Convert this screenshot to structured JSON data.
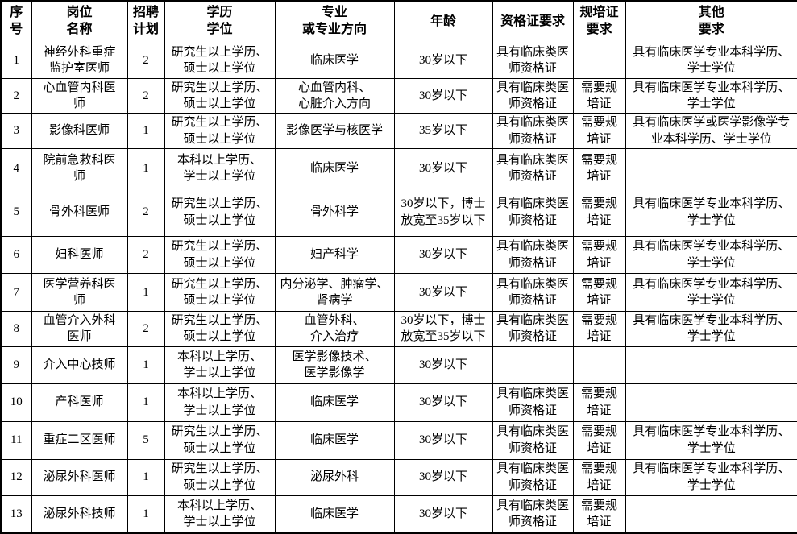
{
  "colors": {
    "background": "#ffffff",
    "border": "#000000",
    "text": "#000000"
  },
  "table": {
    "columns": [
      {
        "label": "序号"
      },
      {
        "label": "岗位\n名称"
      },
      {
        "label": "招聘\n计划"
      },
      {
        "label": "学历\n学位"
      },
      {
        "label": "专业\n或专业方向"
      },
      {
        "label": "年龄"
      },
      {
        "label": "资格证要求"
      },
      {
        "label": "规培证\n要求"
      },
      {
        "label": "其他\n要求"
      }
    ],
    "rows": [
      {
        "cells": [
          "1",
          "神经外科重症\n监护室医师",
          "2",
          "研究生以上学历、\n硕士以上学位",
          "临床医学",
          "30岁以下",
          "具有临床类医\n师资格证",
          "",
          "具有临床医学专业本科学历、\n学士学位"
        ]
      },
      {
        "cells": [
          "2",
          "心血管内科医\n师",
          "2",
          "研究生以上学历、\n硕士以上学位",
          "心血管内科、\n心脏介入方向",
          "30岁以下",
          "具有临床类医\n师资格证",
          "需要规\n培证",
          "具有临床医学专业本科学历、\n学士学位"
        ]
      },
      {
        "cells": [
          "3",
          "影像科医师",
          "1",
          "研究生以上学历、\n硕士以上学位",
          "影像医学与核医学",
          "35岁以下",
          "具有临床类医\n师资格证",
          "需要规\n培证",
          "具有临床医学或医学影像学专\n业本科学历、学士学位"
        ]
      },
      {
        "cells": [
          "4",
          "院前急救科医\n师",
          "1",
          "本科以上学历、\n学士以上学位",
          "临床医学",
          "30岁以下",
          "具有临床类医\n师资格证",
          "需要规\n培证",
          ""
        ]
      },
      {
        "cells": [
          "5",
          "骨外科医师",
          "2",
          "研究生以上学历、\n硕士以上学位",
          "骨外科学",
          "30岁以下，博士\n放宽至35岁以下",
          "具有临床类医\n师资格证",
          "需要规\n培证",
          "具有临床医学专业本科学历、\n学士学位"
        ]
      },
      {
        "cells": [
          "6",
          "妇科医师",
          "2",
          "研究生以上学历、\n硕士以上学位",
          "妇产科学",
          "30岁以下",
          "具有临床类医\n师资格证",
          "需要规\n培证",
          "具有临床医学专业本科学历、\n学士学位"
        ]
      },
      {
        "cells": [
          "7",
          "医学营养科医\n师",
          "1",
          "研究生以上学历、\n硕士以上学位",
          "内分泌学、肿瘤学、\n肾病学",
          "30岁以下",
          "具有临床类医\n师资格证",
          "需要规\n培证",
          "具有临床医学专业本科学历、\n学士学位"
        ]
      },
      {
        "cells": [
          "8",
          "血管介入外科\n医师",
          "2",
          "研究生以上学历、\n硕士以上学位",
          "血管外科、\n介入治疗",
          "30岁以下，博士\n放宽至35岁以下",
          "具有临床类医\n师资格证",
          "需要规\n培证",
          "具有临床医学专业本科学历、\n学士学位"
        ]
      },
      {
        "cells": [
          "9",
          "介入中心技师",
          "1",
          "本科以上学历、\n学士以上学位",
          "医学影像技术、\n医学影像学",
          "30岁以下",
          "",
          "",
          ""
        ]
      },
      {
        "cells": [
          "10",
          "产科医师",
          "1",
          "本科以上学历、\n学士以上学位",
          "临床医学",
          "30岁以下",
          "具有临床类医\n师资格证",
          "需要规\n培证",
          ""
        ]
      },
      {
        "cells": [
          "11",
          "重症二区医师",
          "5",
          "研究生以上学历、\n硕士以上学位",
          "临床医学",
          "30岁以下",
          "具有临床类医\n师资格证",
          "需要规\n培证",
          "具有临床医学专业本科学历、\n学士学位"
        ]
      },
      {
        "cells": [
          "12",
          "泌尿外科医师",
          "1",
          "研究生以上学历、\n硕士以上学位",
          "泌尿外科",
          "30岁以下",
          "具有临床类医\n师资格证",
          "需要规\n培证",
          "具有临床医学专业本科学历、\n学士学位"
        ]
      },
      {
        "cells": [
          "13",
          "泌尿外科技师",
          "1",
          "本科以上学历、\n学士以上学位",
          "临床医学",
          "30岁以下",
          "具有临床类医\n师资格证",
          "需要规\n培证",
          ""
        ]
      }
    ]
  }
}
